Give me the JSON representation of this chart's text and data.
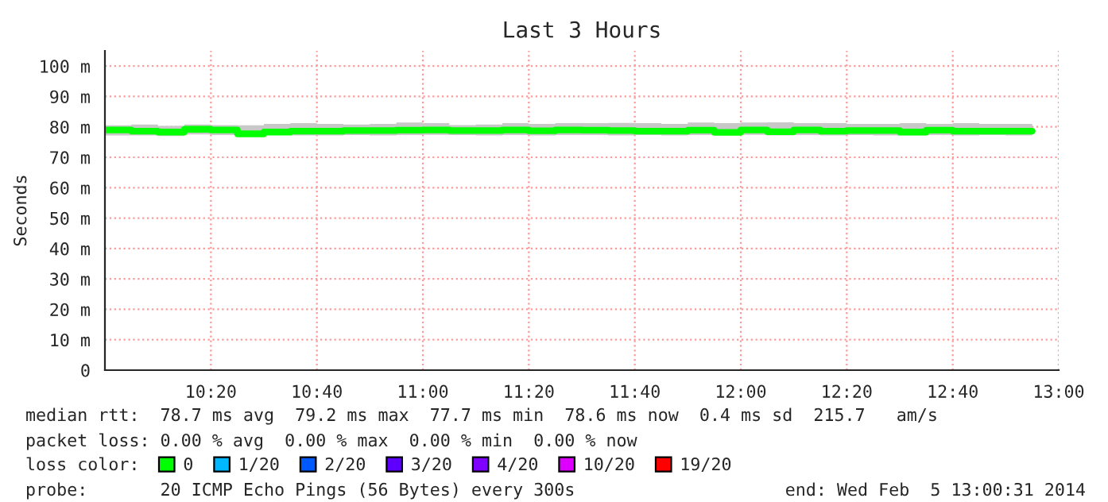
{
  "chart_data": {
    "type": "step",
    "title": "Last 3 Hours",
    "ylabel": "Seconds",
    "x": [
      10.0,
      10.0833,
      10.1667,
      10.25,
      10.3333,
      10.4167,
      10.5,
      10.5833,
      10.6667,
      10.75,
      10.8333,
      10.9167,
      11.0,
      11.0833,
      11.1667,
      11.25,
      11.3333,
      11.4167,
      11.5,
      11.5833,
      11.6667,
      11.75,
      11.8333,
      11.9167,
      12.0,
      12.0833,
      12.1667,
      12.25,
      12.3333,
      12.4167,
      12.5,
      12.5833,
      12.6667,
      12.75,
      12.8333,
      12.9167
    ],
    "series": [
      {
        "name": "0",
        "color": "#00ff00",
        "values": [
          79.0,
          78.6,
          78.3,
          79.2,
          79.0,
          77.7,
          78.3,
          78.6,
          78.6,
          78.8,
          78.8,
          78.9,
          79.0,
          78.8,
          78.8,
          79.0,
          78.7,
          79.0,
          78.9,
          78.8,
          78.6,
          78.6,
          78.9,
          78.2,
          79.0,
          78.4,
          79.0,
          78.6,
          78.8,
          78.8,
          78.3,
          78.9,
          78.6,
          78.6,
          78.6,
          78.6
        ],
        "lower": [
          77.2,
          77.2,
          77.0,
          77.5,
          77.3,
          77.0,
          77.3,
          77.2,
          77.2,
          77.3,
          77.2,
          77.3,
          77.4,
          77.3,
          77.2,
          77.3,
          77.2,
          77.3,
          77.3,
          77.2,
          77.3,
          77.2,
          77.3,
          77.2,
          77.4,
          77.2,
          77.3,
          77.2,
          77.3,
          77.2,
          77.2,
          77.3,
          77.2,
          77.3,
          77.2,
          77.2
        ],
        "upper": [
          80.5,
          80.8,
          80.3,
          80.8,
          80.6,
          80.5,
          81.0,
          81.2,
          81.0,
          80.8,
          81.0,
          81.4,
          81.2,
          80.6,
          80.8,
          81.2,
          81.0,
          81.2,
          81.2,
          81.3,
          81.2,
          81.0,
          81.4,
          81.2,
          81.4,
          81.5,
          81.2,
          81.2,
          81.0,
          81.0,
          81.2,
          81.0,
          81.2,
          81.0,
          81.0,
          81.0
        ]
      },
      {
        "name": "1/20",
        "color": "#00b8ff",
        "values": [
          null,
          null,
          null,
          null,
          null,
          null,
          null,
          null,
          null,
          null,
          null,
          null,
          null,
          null,
          null,
          null,
          null,
          null,
          null,
          null,
          null,
          null,
          null,
          null,
          null,
          null,
          null,
          null,
          null,
          null,
          null,
          null,
          null,
          null,
          null,
          null
        ]
      },
      {
        "name": "2/20",
        "color": "#0059ff",
        "values": [
          null,
          null,
          null,
          null,
          null,
          null,
          null,
          null,
          null,
          null,
          null,
          null,
          null,
          null,
          null,
          null,
          null,
          null,
          null,
          null,
          null,
          null,
          null,
          null,
          null,
          null,
          null,
          null,
          null,
          null,
          null,
          null,
          null,
          null,
          null,
          null
        ]
      },
      {
        "name": "3/20",
        "color": "#5e00ff",
        "values": [
          null,
          null,
          null,
          null,
          null,
          null,
          null,
          null,
          null,
          null,
          null,
          null,
          null,
          null,
          null,
          null,
          null,
          null,
          null,
          null,
          null,
          null,
          null,
          null,
          null,
          null,
          null,
          null,
          null,
          null,
          null,
          null,
          null,
          null,
          null,
          null
        ]
      },
      {
        "name": "4/20",
        "color": "#7e00ff",
        "values": [
          null,
          null,
          null,
          null,
          null,
          null,
          null,
          null,
          null,
          null,
          null,
          null,
          null,
          null,
          null,
          null,
          null,
          null,
          null,
          null,
          null,
          null,
          null,
          null,
          null,
          null,
          null,
          null,
          null,
          null,
          null,
          null,
          null,
          null,
          null,
          null
        ]
      },
      {
        "name": "10/20",
        "color": "#dd00ff",
        "values": [
          null,
          null,
          null,
          null,
          null,
          null,
          null,
          null,
          null,
          null,
          null,
          null,
          null,
          null,
          null,
          null,
          null,
          null,
          null,
          null,
          null,
          null,
          null,
          null,
          null,
          null,
          null,
          null,
          null,
          null,
          null,
          null,
          null,
          null,
          null,
          null
        ]
      },
      {
        "name": "19/20",
        "color": "#ff0000",
        "values": [
          null,
          null,
          null,
          null,
          null,
          null,
          null,
          null,
          null,
          null,
          null,
          null,
          null,
          null,
          null,
          null,
          null,
          null,
          null,
          null,
          null,
          null,
          null,
          null,
          null,
          null,
          null,
          null,
          null,
          null,
          null,
          null,
          null,
          null,
          null,
          null
        ]
      }
    ],
    "legend": "bottom",
    "legend_title": "loss color:",
    "xlim": [
      10.0,
      13.0
    ],
    "xticks": [
      {
        "value": 10.3333,
        "label": "10:20"
      },
      {
        "value": 10.6667,
        "label": "10:40"
      },
      {
        "value": 11.0,
        "label": "11:00"
      },
      {
        "value": 11.3333,
        "label": "11:20"
      },
      {
        "value": 11.6667,
        "label": "11:40"
      },
      {
        "value": 12.0,
        "label": "12:00"
      },
      {
        "value": 12.3333,
        "label": "12:20"
      },
      {
        "value": 12.6667,
        "label": "12:40"
      },
      {
        "value": 13.0,
        "label": "13:00"
      }
    ],
    "ylim": [
      0,
      105
    ],
    "yticks": [
      0,
      {
        "value": 10,
        "label": "10 m"
      },
      {
        "value": 20,
        "label": "20 m"
      },
      {
        "value": 30,
        "label": "30 m"
      },
      {
        "value": 40,
        "label": "40 m"
      },
      {
        "value": 50,
        "label": "50 m"
      },
      {
        "value": 60,
        "label": "60 m"
      },
      {
        "value": 70,
        "label": "70 m"
      },
      {
        "value": 80,
        "label": "80 m"
      },
      {
        "value": 90,
        "label": "90 m"
      },
      {
        "value": 100,
        "label": "100 m"
      }
    ],
    "grid": true,
    "annotations": [
      "median rtt:  78.7 ms avg  79.2 ms max  77.7 ms min  78.6 ms now  0.4 ms sd  215.7   am/s",
      "packet loss: 0.00 % avg  0.00 % max  0.00 % min  0.00 % now",
      "probe:       20 ICMP Echo Pings (56 Bytes) every 300s",
      "end: Wed Feb  5 13:00:31 2014"
    ]
  }
}
